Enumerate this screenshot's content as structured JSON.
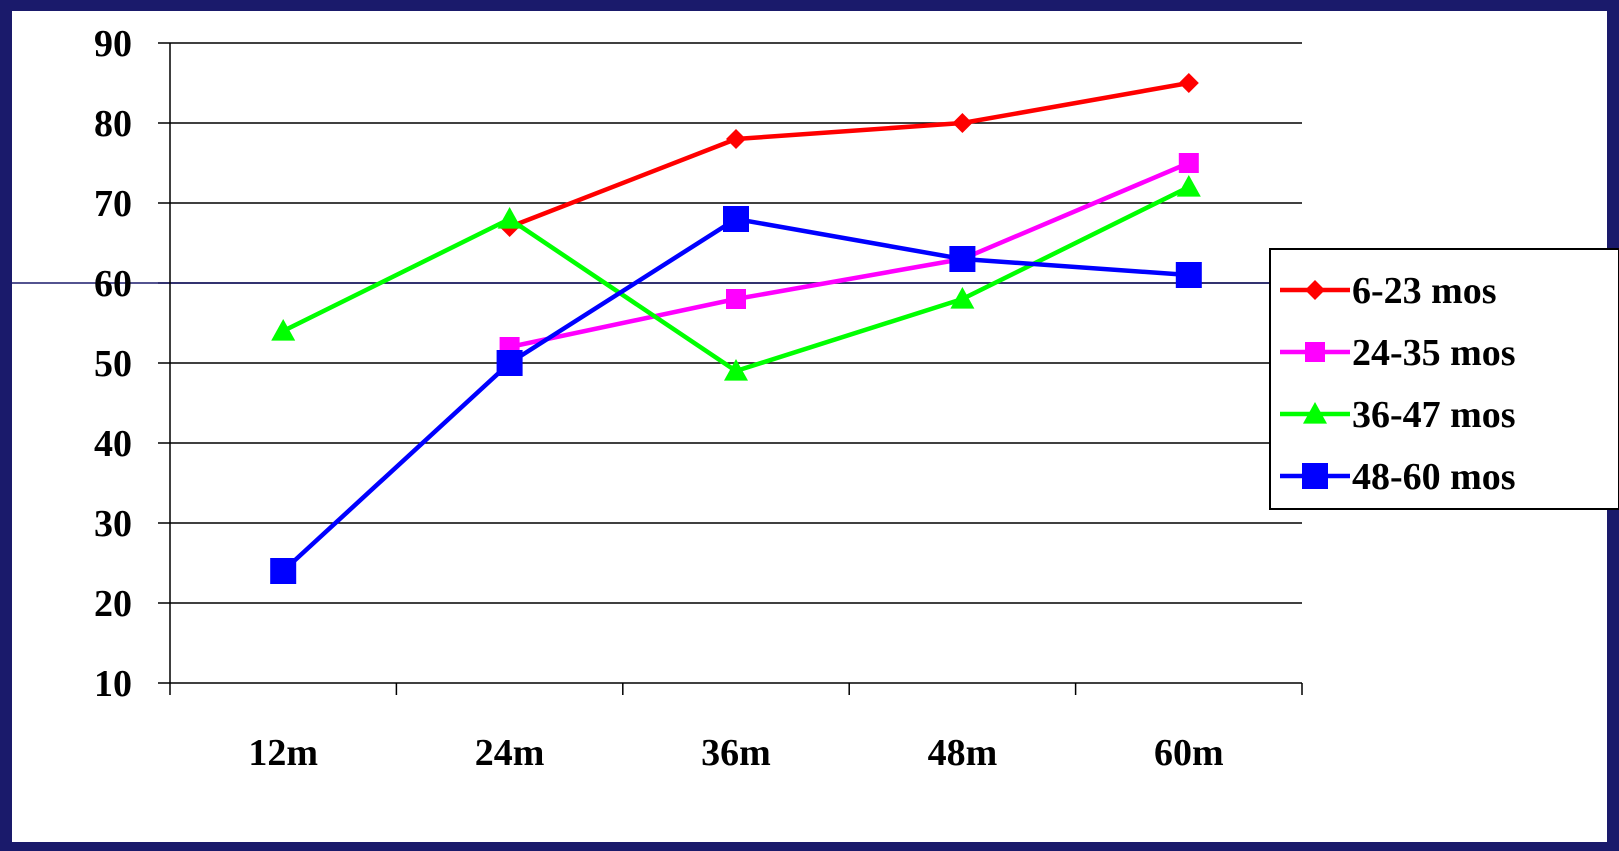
{
  "chart_data": {
    "type": "line",
    "categories": [
      "12m",
      "24m",
      "36m",
      "48m",
      "60m"
    ],
    "series": [
      {
        "name": "6-23 mos",
        "color": "#ff0000",
        "marker": "diamond",
        "values": [
          null,
          67,
          78,
          80,
          85
        ]
      },
      {
        "name": "24-35 mos",
        "color": "#ff00ff",
        "marker": "square",
        "values": [
          null,
          52,
          58,
          63,
          75
        ]
      },
      {
        "name": "36-47 mos",
        "color": "#00ff00",
        "marker": "triangle",
        "values": [
          54,
          68,
          49,
          58,
          72
        ]
      },
      {
        "name": "48-60 mos",
        "color": "#0000ff",
        "marker": "square-large",
        "values": [
          24,
          50,
          68,
          63,
          61
        ]
      }
    ],
    "yticks": [
      "10",
      "20",
      "30",
      "40",
      "50",
      "60",
      "70",
      "80",
      "90"
    ],
    "ylim": [
      10,
      90
    ],
    "grid": true,
    "legend": "right"
  },
  "theme": {
    "border_color": "#1a1a6b",
    "gridline_color": "#000000",
    "reference_line_color": "#1a1a6b"
  }
}
